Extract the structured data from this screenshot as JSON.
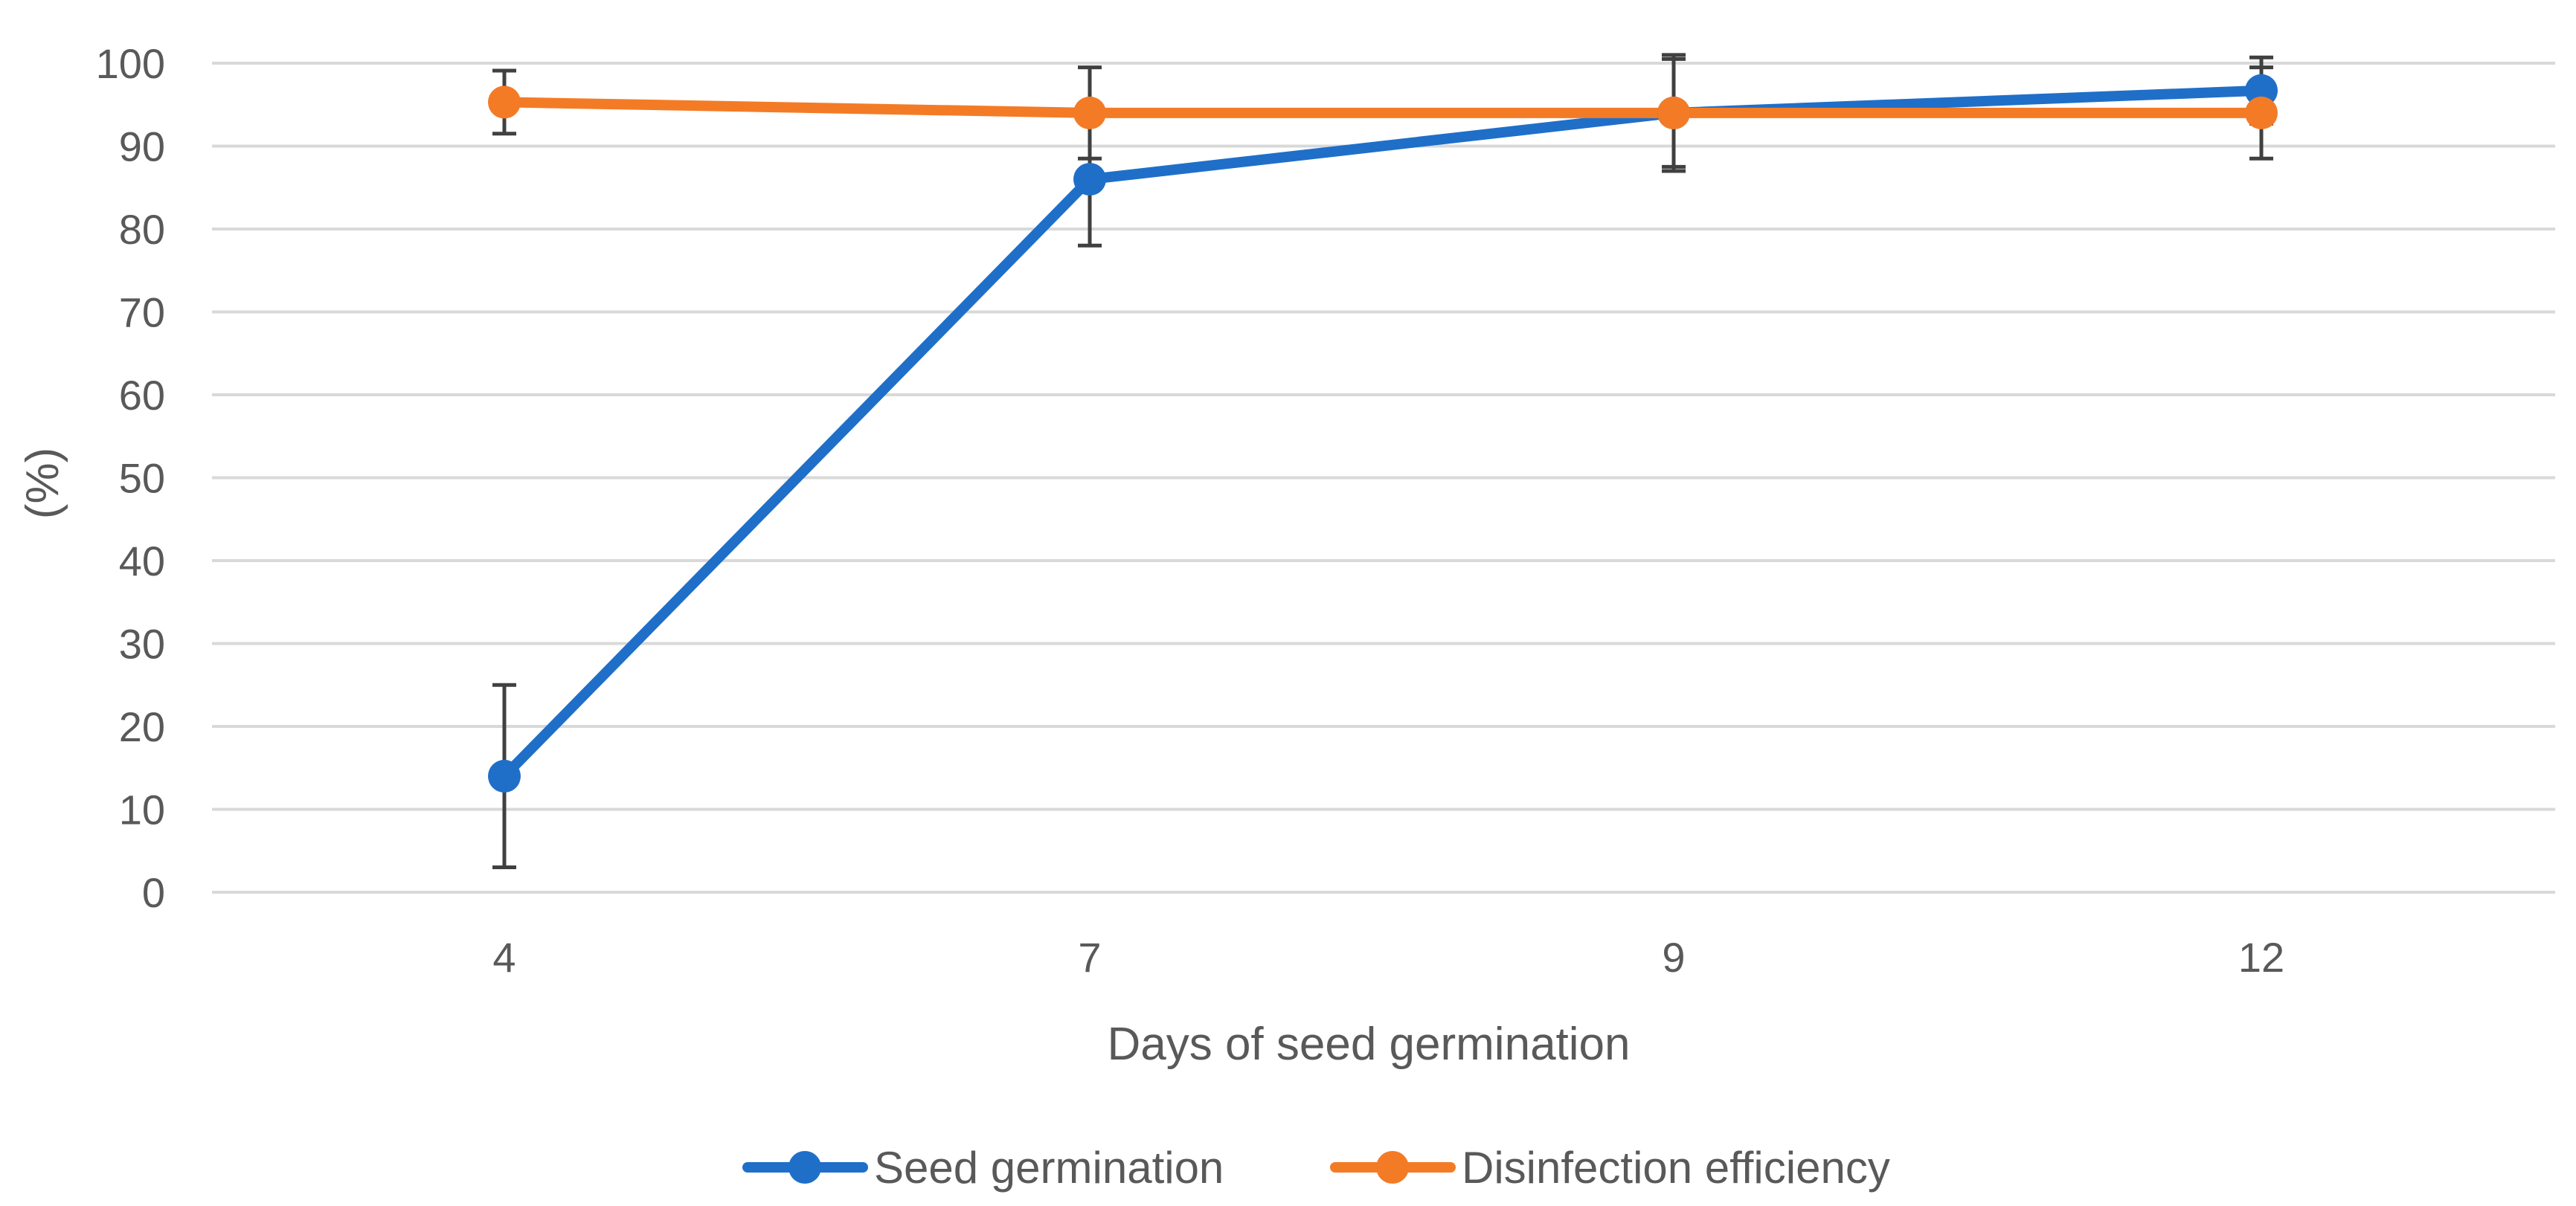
{
  "chart_data": {
    "type": "line",
    "title": "",
    "xlabel": "Days of seed germination",
    "ylabel": "(%)",
    "categories": [
      "4",
      "7",
      "9",
      "12"
    ],
    "x": [
      4,
      7,
      9,
      12
    ],
    "ylim": [
      0,
      100
    ],
    "yticks": [
      "0",
      "10",
      "20",
      "30",
      "40",
      "50",
      "60",
      "70",
      "80",
      "90",
      "100"
    ],
    "grid": true,
    "legend_position": "bottom-center",
    "series": [
      {
        "name": "Seed germination",
        "color": "#1f6fc9",
        "values": [
          14,
          86,
          94,
          96.7
        ],
        "error_bars": [
          11,
          8,
          7,
          4
        ]
      },
      {
        "name": "Disinfection efficiency",
        "color": "#f47b25",
        "values": [
          95.3,
          94,
          94,
          94
        ],
        "error_bars": [
          3.8,
          5.5,
          6.5,
          5.5
        ]
      }
    ]
  }
}
